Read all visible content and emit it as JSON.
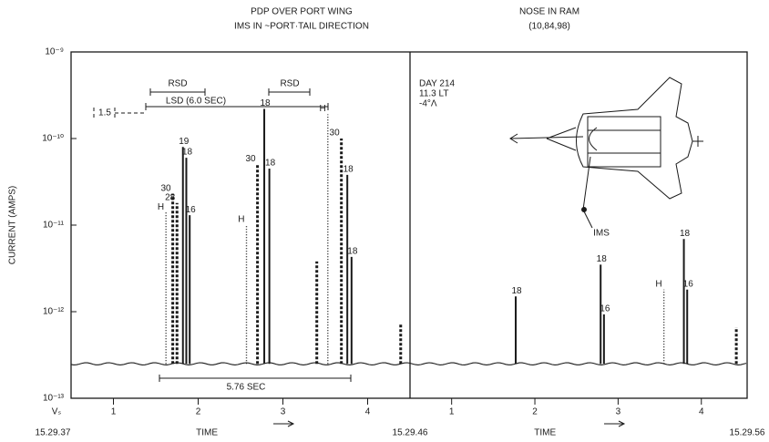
{
  "chart_data": [
    {
      "type": "spike",
      "title": [
        "PDP OVER PORT WING",
        "IMS IN ~PORT·TAIL DIRECTION"
      ],
      "ylabel": "CURRENT (AMPS)",
      "log_scale": true,
      "ylim": [
        1e-13,
        1e-09
      ],
      "yticks": [
        {
          "value": 1e-09,
          "label": "10⁻⁹"
        },
        {
          "value": 1e-10,
          "label": "10⁻¹⁰"
        },
        {
          "value": 1e-11,
          "label": "10⁻¹¹"
        },
        {
          "value": 1e-12,
          "label": "10⁻¹²"
        },
        {
          "value": 1e-13,
          "label": "10⁻¹³"
        }
      ],
      "xlim": [
        0.5,
        4.5
      ],
      "xticks": [
        1,
        2,
        3,
        4
      ],
      "x_origin_label": "Vₛ",
      "x_start_label": "15.29.37",
      "x_end_label": "15.29.46",
      "xlabel": "TIME",
      "baseline": 2.5e-13,
      "x": [
        1.62,
        1.7,
        1.75,
        1.82,
        1.86,
        1.9,
        2.57,
        2.7,
        2.78,
        2.84,
        3.4,
        3.53,
        3.69,
        3.76,
        3.81,
        4.39
      ],
      "values": [
        1.4e-11,
        2.3e-11,
        1.8e-11,
        8e-11,
        6e-11,
        1.3e-11,
        1e-11,
        5e-11,
        2.2e-10,
        4.5e-11,
        3.8e-12,
        1.9e-10,
        1e-10,
        3.8e-11,
        4.3e-12,
        7.2e-13
      ],
      "labels": [
        "H",
        "30",
        "28",
        "19",
        "18",
        "16",
        "H",
        "30",
        "18",
        "18",
        null,
        "H",
        "30",
        "18",
        "18",
        null
      ],
      "styles": [
        "dotted",
        "dashed",
        "dashed",
        "solid",
        "solid",
        "solid",
        "dotted",
        "dashed",
        "solid",
        "solid",
        "dashed",
        "dotted",
        "dashed",
        "solid",
        "solid",
        "dashed"
      ],
      "annotations": [
        "RSD",
        "RSD",
        "LSD (6.0 SEC)",
        "1.5",
        "5.76 SEC"
      ]
    },
    {
      "type": "spike",
      "title": [
        "NOSE IN RAM",
        "(10,84,98)"
      ],
      "log_scale": true,
      "ylim": [
        1e-13,
        1e-09
      ],
      "xlim": [
        0.5,
        4.55
      ],
      "xticks": [
        1,
        2,
        3,
        4
      ],
      "x_end_label": "15.29.56",
      "xlabel": "TIME",
      "baseline": 2.5e-13,
      "x": [
        1.77,
        2.79,
        2.83,
        3.55,
        3.79,
        3.83,
        4.42
      ],
      "values": [
        1.5e-12,
        3.5e-12,
        9.3e-13,
        1.8e-12,
        6.9e-12,
        1.8e-12,
        6.6e-13
      ],
      "labels": [
        "18",
        "18",
        "16",
        "H",
        "18",
        "16",
        null
      ],
      "styles": [
        "solid",
        "solid",
        "solid",
        "dotted",
        "solid",
        "solid",
        "dashed"
      ],
      "annotations": [
        "DAY 214",
        "11.3 LT",
        "-4°Λ",
        "IMS"
      ]
    }
  ]
}
